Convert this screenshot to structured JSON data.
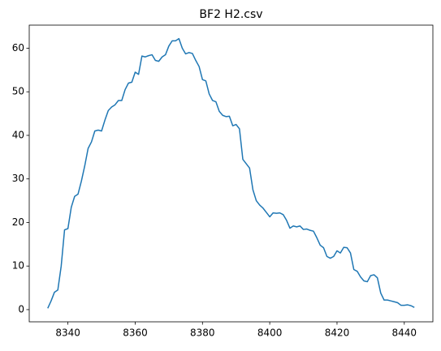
{
  "chart_data": {
    "type": "line",
    "title": "BF2 H2.csv",
    "x": [
      8334,
      8335,
      8336,
      8337,
      8338,
      8339,
      8340,
      8341,
      8342,
      8343,
      8344,
      8345,
      8346,
      8347,
      8348,
      8349,
      8350,
      8351,
      8352,
      8353,
      8354,
      8355,
      8356,
      8357,
      8358,
      8359,
      8360,
      8361,
      8362,
      8363,
      8364,
      8365,
      8366,
      8367,
      8368,
      8369,
      8370,
      8371,
      8372,
      8373,
      8374,
      8375,
      8376,
      8377,
      8378,
      8379,
      8380,
      8381,
      8382,
      8383,
      8384,
      8385,
      8386,
      8387,
      8388,
      8389,
      8390,
      8391,
      8392,
      8393,
      8394,
      8395,
      8396,
      8397,
      8398,
      8399,
      8400,
      8401,
      8402,
      8403,
      8404,
      8405,
      8406,
      8407,
      8408,
      8409,
      8410,
      8411,
      8412,
      8413,
      8414,
      8415,
      8416,
      8417,
      8418,
      8419,
      8420,
      8421,
      8422,
      8423,
      8424,
      8425,
      8426,
      8427,
      8428,
      8429,
      8430,
      8431,
      8432,
      8433,
      8434,
      8435,
      8436,
      8437,
      8438,
      8439,
      8440,
      8441,
      8442,
      8443
    ],
    "series": [
      {
        "color": "#1f77b4",
        "values": [
          0.3,
          2,
          4,
          4.5,
          10,
          18.3,
          18.6,
          23.5,
          26,
          26.5,
          29.5,
          33,
          37,
          38.5,
          41,
          41.2,
          41,
          43.5,
          45.7,
          46.5,
          47,
          48,
          48,
          50.5,
          52,
          52.2,
          54.5,
          54,
          58.2,
          58,
          58.3,
          58.5,
          57.2,
          57,
          58,
          58.5,
          60.5,
          61.7,
          61.7,
          62.2,
          60,
          58.7,
          59,
          58.8,
          57.2,
          55.8,
          52.8,
          52.5,
          49.5,
          48,
          47.7,
          45.5,
          44.6,
          44.3,
          44.4,
          42.2,
          42.5,
          41.5,
          34.5,
          33.5,
          32.5,
          27.5,
          25,
          24,
          23.3,
          22.3,
          21.3,
          22.2,
          22.1,
          22.2,
          21.8,
          20.5,
          18.7,
          19.2,
          19,
          19.2,
          18.4,
          18.5,
          18.2,
          18,
          16.5,
          14.8,
          14.2,
          12.2,
          11.8,
          12.2,
          13.5,
          13,
          14.3,
          14.2,
          13,
          9.2,
          8.8,
          7.5,
          6.6,
          6.4,
          7.8,
          8,
          7.3,
          3.8,
          2.2,
          2.2,
          2,
          1.8,
          1.6,
          1,
          1,
          1.1,
          0.9,
          0.5
        ]
      }
    ],
    "xlim": [
      8328.5,
      8448.5
    ],
    "xticks": [
      8340,
      8360,
      8380,
      8400,
      8420,
      8440
    ],
    "ylim": [
      -2.8,
      65.3
    ],
    "yticks": [
      0,
      10,
      20,
      30,
      40,
      50,
      60
    ],
    "grid": false
  }
}
